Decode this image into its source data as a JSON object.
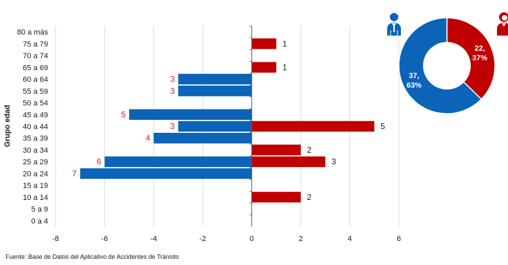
{
  "colors": {
    "male": "#0b64b7",
    "female": "#c00000",
    "grid": "#d9d9d9",
    "axis": "#595959"
  },
  "icons": {
    "male": "male-person-icon",
    "female": "female-person-icon"
  },
  "source": "Fuente: Base de Datos del Aplicativo de Accidentes de Tránsito",
  "chart_data": [
    {
      "type": "bar",
      "orientation": "horizontal",
      "ylabel": "Grupo edad",
      "xlabel": "",
      "xlim": [
        -8,
        6
      ],
      "xticks": [
        -8,
        -6,
        -4,
        -2,
        0,
        2,
        4,
        6
      ],
      "grid": true,
      "categories": [
        "80 a más",
        "75 a 79",
        "70 a 74",
        "65 a 69",
        "60 a 64",
        "55 a 59",
        "50 a 54",
        "45 a 49",
        "40 a 44",
        "35 a 39",
        "30 a 34",
        "25 a 29",
        "20 a 24",
        "15 a 19",
        "10 a 14",
        "5 a 9",
        "0 a 4"
      ],
      "series": [
        {
          "values": [
            0,
            0,
            0,
            0,
            -3,
            -3,
            0,
            -5,
            -3,
            -4,
            0,
            -6,
            -7,
            0,
            0,
            0,
            0
          ],
          "labels": [
            "",
            "",
            "",
            "",
            "3",
            "3",
            "",
            "5",
            "3",
            "4",
            "",
            "6",
            "7",
            "",
            "",
            "",
            ""
          ]
        },
        {
          "values": [
            0,
            1,
            0,
            1,
            0,
            0,
            0,
            0,
            5,
            0,
            2,
            3,
            0,
            0,
            2,
            0,
            0
          ],
          "labels": [
            "",
            "1",
            "",
            "1",
            "",
            "",
            "",
            "",
            "5",
            "",
            "2",
            "3",
            "",
            "",
            "2",
            "",
            ""
          ]
        }
      ]
    },
    {
      "type": "pie",
      "donut": true,
      "slices": [
        {
          "value": 22,
          "percent": 37,
          "label_line1": "22,",
          "label_line2": "37%"
        },
        {
          "value": 37,
          "percent": 63,
          "label_line1": "37,",
          "label_line2": "63%"
        }
      ]
    }
  ]
}
